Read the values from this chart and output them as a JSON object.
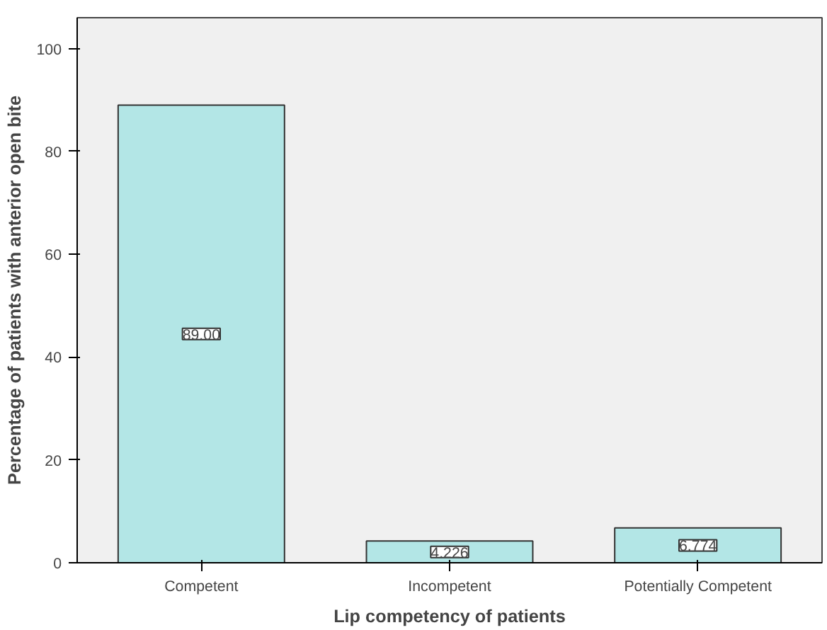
{
  "chart_data": {
    "type": "bar",
    "xlabel": "Lip competency of patients",
    "ylabel": "Percentage of patients with anterior open bite",
    "categories": [
      "Competent",
      "Incompetent",
      "Potentially Competent"
    ],
    "values": [
      89.0,
      4.226,
      6.774
    ],
    "value_labels": [
      "89.00",
      "4.226",
      "6.774"
    ],
    "color": "#b3e6e6",
    "ylim": [
      0,
      106
    ],
    "yticks": [
      0,
      20,
      40,
      60,
      80,
      100
    ],
    "grid": false
  }
}
